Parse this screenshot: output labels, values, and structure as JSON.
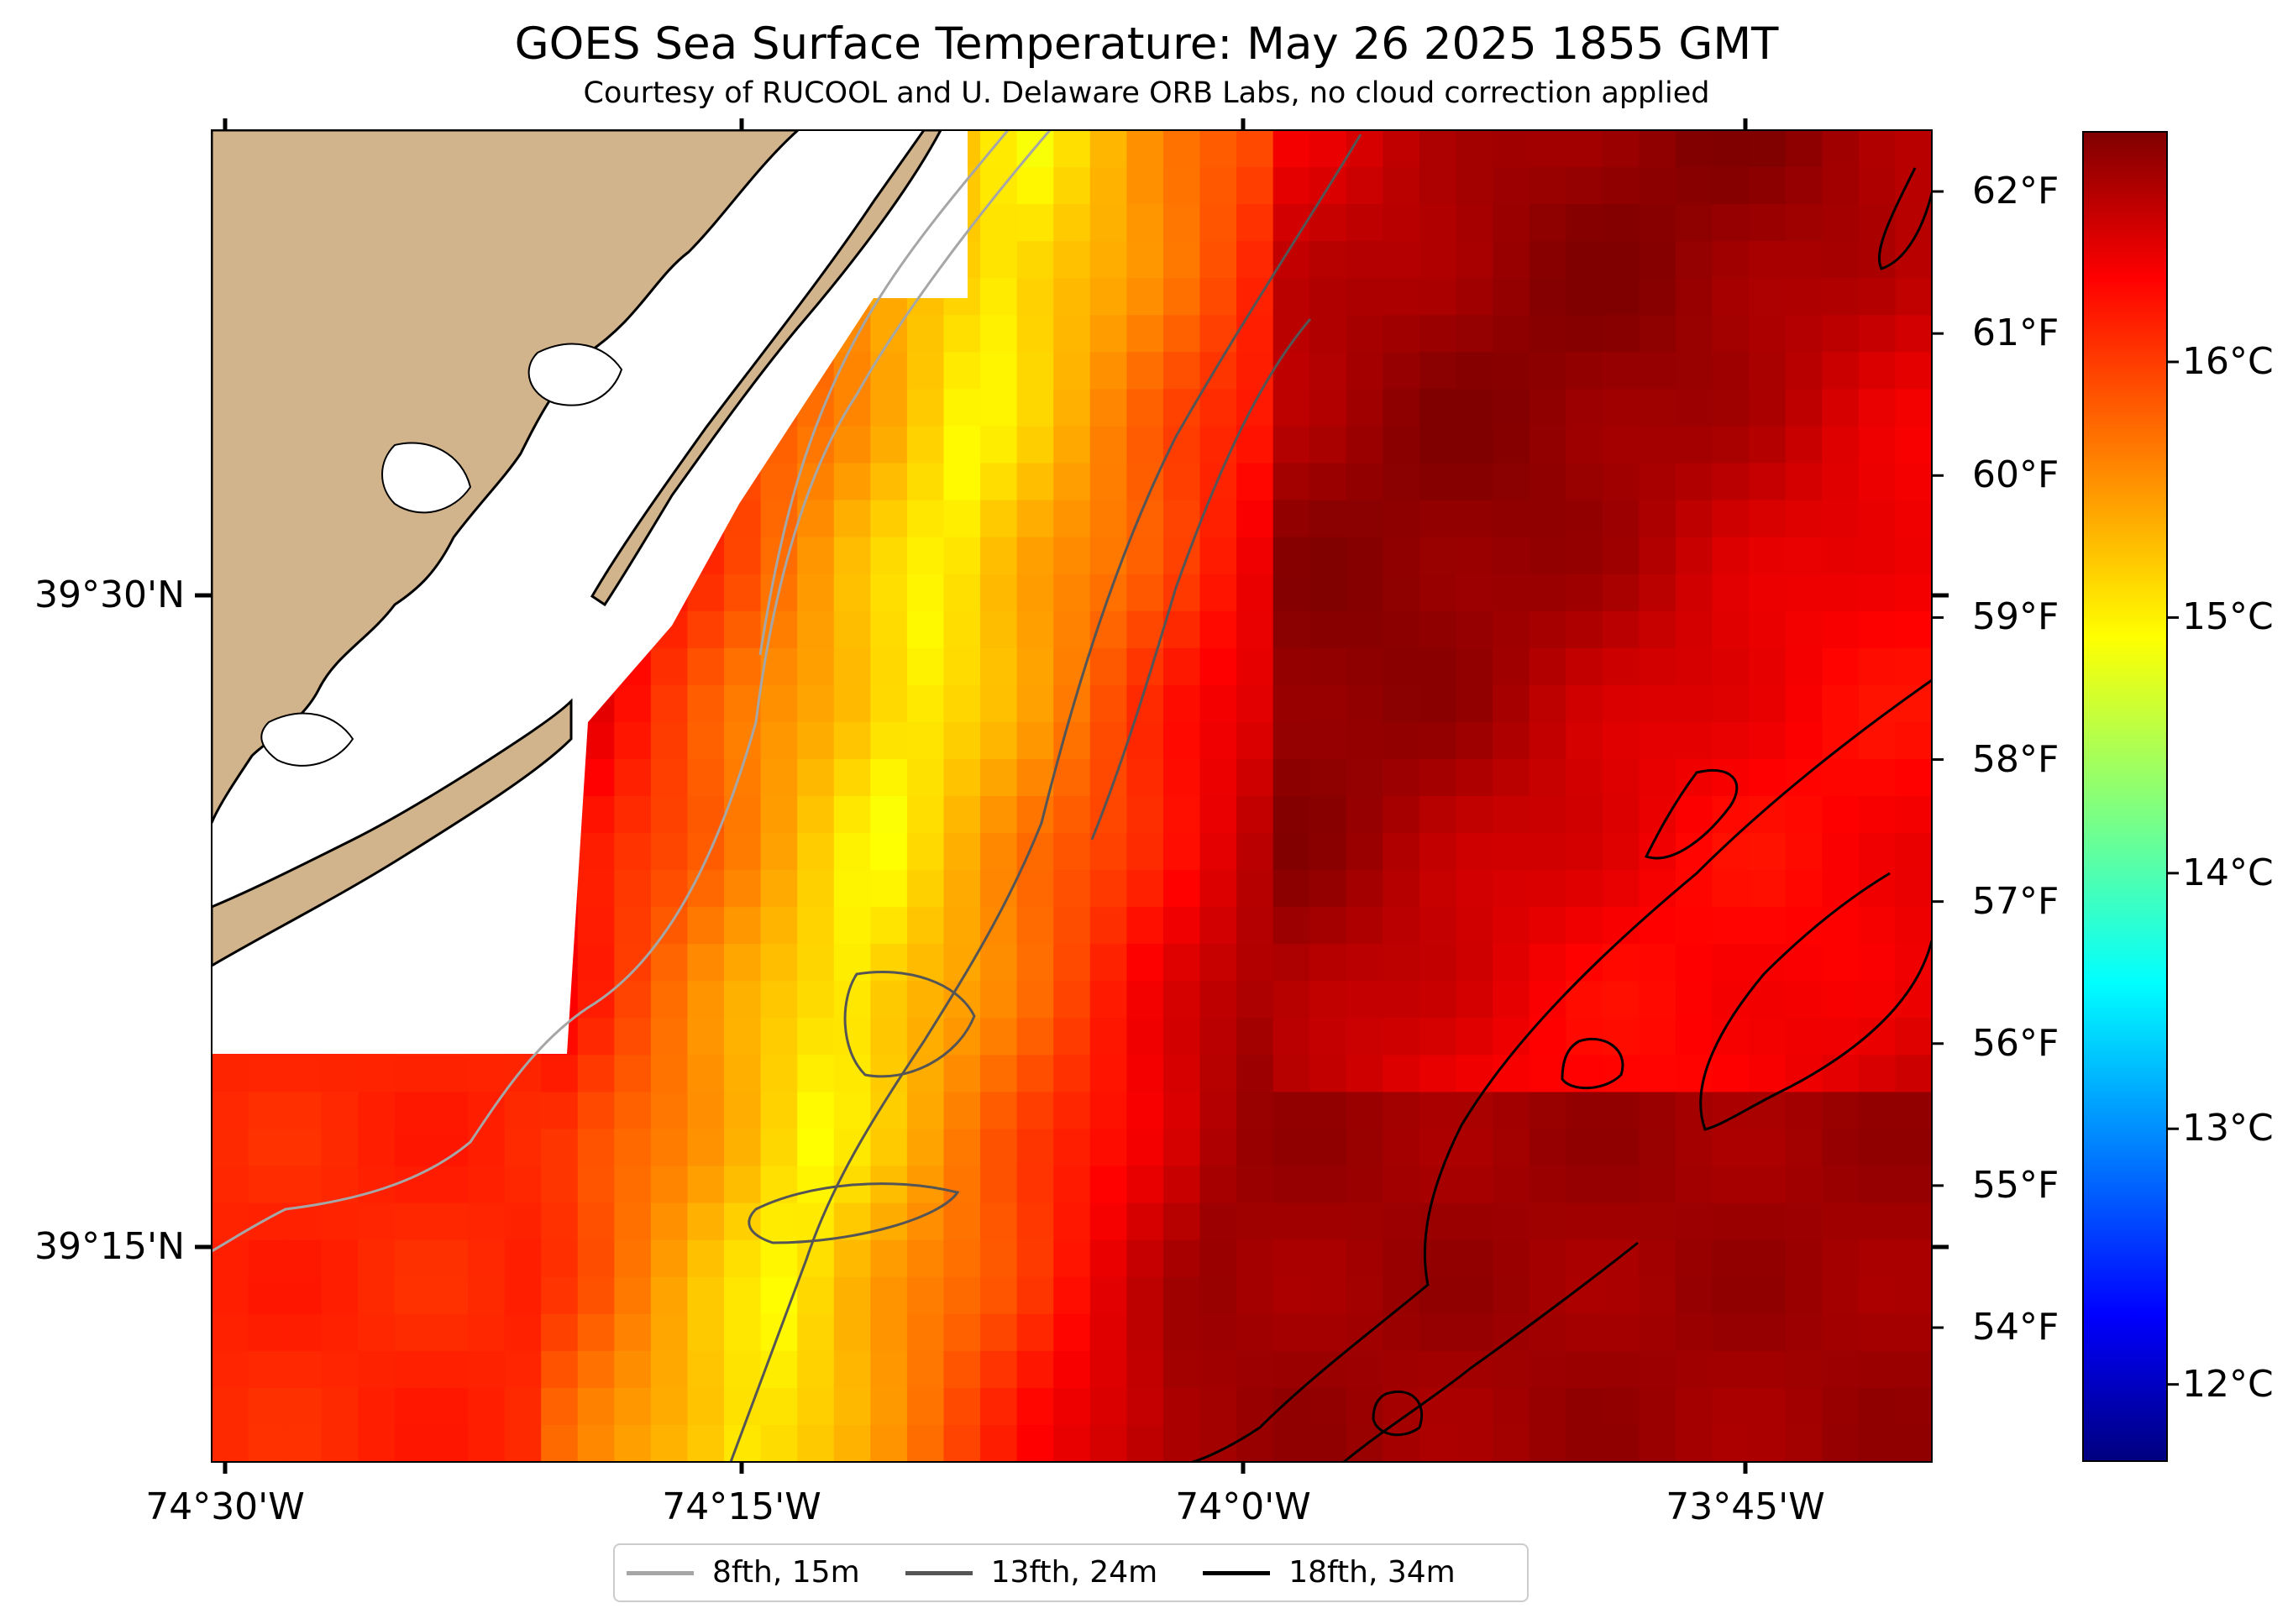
{
  "title": "GOES Sea Surface Temperature: May 26 2025 1855 GMT",
  "subtitle": "Courtesy of RUCOOL and U. Delaware ORB Labs, no cloud correction applied",
  "map": {
    "latitude_labels": [
      "39°30'N",
      "39°15'N"
    ],
    "longitude_labels": [
      "74°30'W",
      "74°15'W",
      "74°0'W",
      "73°45'W"
    ],
    "land_color": "#d2b48c",
    "missing_data_color": "#ffffff",
    "coastline_color": "#000000"
  },
  "colorbar": {
    "colormap": "jet",
    "fahrenheit_labels": [
      "62°F",
      "61°F",
      "60°F",
      "59°F",
      "58°F",
      "57°F",
      "56°F",
      "55°F",
      "54°F"
    ],
    "celsius_labels": [
      "16°C",
      "15°C",
      "14°C",
      "13°C",
      "12°C"
    ],
    "min_c": 11.7,
    "max_c": 16.9
  },
  "legend": [
    {
      "label": "8fth, 15m",
      "color": "#a6a6a6"
    },
    {
      "label": "13fth, 24m",
      "color": "#555555"
    },
    {
      "label": "18fth, 34m",
      "color": "#000000"
    }
  ]
}
